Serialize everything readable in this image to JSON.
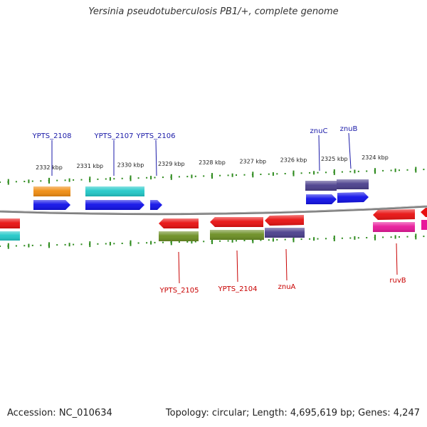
{
  "title": "Yersinia pseudotuberculosis PB1/+, complete genome",
  "footer": {
    "accession_label": "Accession: NC_010634",
    "summary_label": "Topology: circular; Length: 4,695,619 bp; Genes: 4,247"
  },
  "ticks": [
    {
      "label": "2332 kbp",
      "bp": 2332000
    },
    {
      "label": "2331 kbp",
      "bp": 2331000
    },
    {
      "label": "2330 kbp",
      "bp": 2330000
    },
    {
      "label": "2329 kbp",
      "bp": 2329000
    },
    {
      "label": "2328 kbp",
      "bp": 2328000
    },
    {
      "label": "2327 kbp",
      "bp": 2327000
    },
    {
      "label": "2326 kbp",
      "bp": 2326000
    },
    {
      "label": "2325 kbp",
      "bp": 2325000
    },
    {
      "label": "2324 kbp",
      "bp": 2324000
    }
  ],
  "colors": {
    "backbone": "#888888",
    "ticks": "#2e8b1e",
    "label_forward": "#1a1aa8",
    "label_reverse": "#c80000",
    "cds_forward": "#1010e8",
    "cds_reverse": "#e81010",
    "forward_orange": "#f08c10",
    "forward_cyan": "#20c8c8",
    "forward_slate": "#4a3f8c",
    "reverse_olive": "#6b8e23",
    "reverse_slate": "#4a3f8c",
    "reverse_magenta": "#e8189a",
    "reverse_cyan": "#20c8c8"
  },
  "genes_forward": [
    {
      "name": "YPTS_2108",
      "center_bp": 2332000
    },
    {
      "name": "YPTS_2107",
      "center_bp": 2330360
    },
    {
      "name": "YPTS_2106",
      "center_bp": 2329350
    },
    {
      "name": "znuC",
      "center_bp": 2325310
    },
    {
      "name": "znuB",
      "center_bp": 2324570
    }
  ],
  "genes_reverse": [
    {
      "name": "YPTS_2105",
      "center_bp": 2328810
    },
    {
      "name": "YPTS_2104",
      "center_bp": 2327480
    },
    {
      "name": "znuA",
      "center_bp": 2326180
    },
    {
      "name": "ruvB",
      "center_bp": 2323120
    }
  ]
}
